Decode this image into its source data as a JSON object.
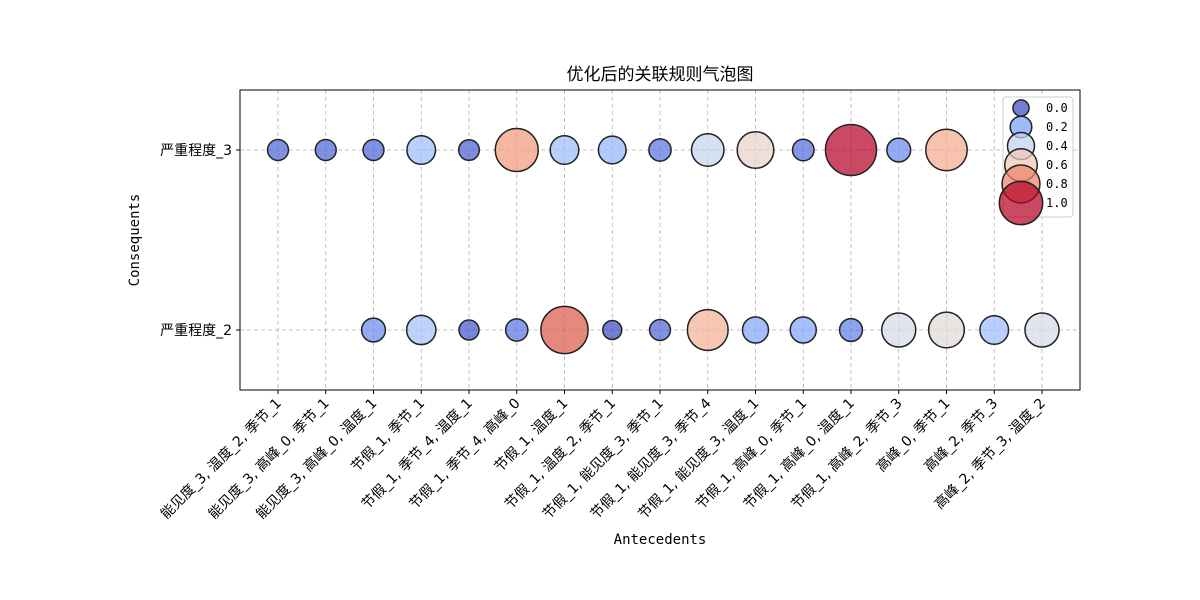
{
  "chart_data": {
    "type": "scatter",
    "title": "优化后的关联规则气泡图",
    "xlabel": "Antecedents",
    "ylabel": "Consequents",
    "x_categories": [
      "能见度_3, 温度_2, 季节_1",
      "能见度_3, 高峰_0, 季节_1",
      "能见度_3, 高峰_0, 温度_1",
      "节假_1, 季节_1",
      "节假_1, 季节_4, 温度_1",
      "节假_1, 季节_4, 高峰_0",
      "节假_1, 温度_1",
      "节假_1, 温度_2, 季节_1",
      "节假_1, 能见度_3, 季节_1",
      "节假_1, 能见度_3, 季节_4",
      "节假_1, 能见度_3, 温度_1",
      "节假_1, 高峰_0, 季节_1",
      "节假_1, 高峰_0, 温度_1",
      "节假_1, 高峰_2, 季节_3",
      "高峰_0, 季节_1",
      "高峰_2, 季节_3",
      "高峰_2, 季节_3, 温度_2"
    ],
    "y_categories": [
      "严重程度_2",
      "严重程度_3"
    ],
    "size_color_scale": "coolwarm",
    "legend_values": [
      "0.0",
      "0.2",
      "0.4",
      "0.6",
      "0.8",
      "1.0"
    ],
    "legend_position": "upper right",
    "grid": true,
    "points": [
      {
        "x": "能见度_3, 温度_2, 季节_1",
        "y": "严重程度_3",
        "value": 0.06
      },
      {
        "x": "能见度_3, 高峰_0, 季节_1",
        "y": "严重程度_3",
        "value": 0.06
      },
      {
        "x": "能见度_3, 高峰_0, 温度_1",
        "y": "严重程度_3",
        "value": 0.06
      },
      {
        "x": "节假_1, 季节_1",
        "y": "严重程度_3",
        "value": 0.3
      },
      {
        "x": "节假_1, 季节_4, 温度_1",
        "y": "严重程度_3",
        "value": 0.05
      },
      {
        "x": "节假_1, 季节_4, 高峰_0",
        "y": "严重程度_3",
        "value": 0.75
      },
      {
        "x": "节假_1, 温度_1",
        "y": "严重程度_3",
        "value": 0.3
      },
      {
        "x": "节假_1, 温度_2, 季节_1",
        "y": "严重程度_3",
        "value": 0.27
      },
      {
        "x": "节假_1, 能见度_3, 季节_1",
        "y": "严重程度_3",
        "value": 0.1
      },
      {
        "x": "节假_1, 能见度_3, 季节_4",
        "y": "严重程度_3",
        "value": 0.42
      },
      {
        "x": "节假_1, 能见度_3, 温度_1",
        "y": "严重程度_3",
        "value": 0.55
      },
      {
        "x": "节假_1, 高峰_0, 季节_1",
        "y": "严重程度_3",
        "value": 0.08
      },
      {
        "x": "节假_1, 高峰_0, 温度_1",
        "y": "严重程度_3",
        "value": 1.0
      },
      {
        "x": "节假_1, 高峰_2, 季节_3",
        "y": "严重程度_3",
        "value": 0.15
      },
      {
        "x": "高峰_0, 季节_1",
        "y": "严重程度_3",
        "value": 0.7
      },
      {
        "x": "能见度_3, 高峰_0, 温度_1",
        "y": "严重程度_2",
        "value": 0.15
      },
      {
        "x": "节假_1, 季节_1",
        "y": "严重程度_2",
        "value": 0.32
      },
      {
        "x": "节假_1, 季节_4, 温度_1",
        "y": "严重程度_2",
        "value": 0.03
      },
      {
        "x": "节假_1, 季节_4, 高峰_0",
        "y": "严重程度_2",
        "value": 0.1
      },
      {
        "x": "节假_1, 温度_1",
        "y": "严重程度_2",
        "value": 0.88
      },
      {
        "x": "节假_1, 温度_2, 季节_1",
        "y": "严重程度_2",
        "value": 0.0
      },
      {
        "x": "节假_1, 能见度_3, 季节_1",
        "y": "严重程度_2",
        "value": 0.06
      },
      {
        "x": "节假_1, 能见度_3, 季节_4",
        "y": "严重程度_2",
        "value": 0.68
      },
      {
        "x": "节假_1, 能见度_3, 温度_1",
        "y": "严重程度_2",
        "value": 0.22
      },
      {
        "x": "节假_1, 高峰_0, 季节_1",
        "y": "严重程度_2",
        "value": 0.22
      },
      {
        "x": "节假_1, 高峰_0, 温度_1",
        "y": "严重程度_2",
        "value": 0.12
      },
      {
        "x": "节假_1, 高峰_2, 季节_3",
        "y": "严重程度_2",
        "value": 0.47
      },
      {
        "x": "高峰_0, 季节_1",
        "y": "严重程度_2",
        "value": 0.52
      },
      {
        "x": "高峰_2, 季节_3",
        "y": "严重程度_2",
        "value": 0.3
      },
      {
        "x": "高峰_2, 季节_3, 温度_2",
        "y": "严重程度_2",
        "value": 0.47
      }
    ]
  }
}
